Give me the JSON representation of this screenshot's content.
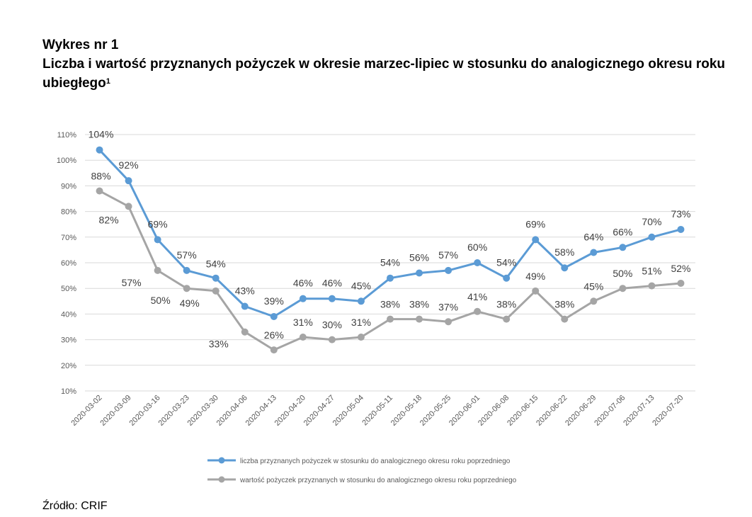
{
  "header": {
    "chart_number": "Wykres nr 1",
    "title": "Liczba i wartość przyznanych pożyczek w okresie marzec-lipiec w stosunku do analogicznego okresu roku ubiegłego",
    "footnote_mark": "1"
  },
  "source": "Źródło: CRIF",
  "chart_data": {
    "type": "line",
    "ylim": [
      0.1,
      1.1
    ],
    "y_ticks": [
      0.1,
      0.2,
      0.3,
      0.4,
      0.5,
      0.6,
      0.7,
      0.8,
      0.9,
      1.0,
      1.1
    ],
    "y_tick_labels": [
      "10%",
      "20%",
      "30%",
      "40%",
      "50%",
      "60%",
      "70%",
      "80%",
      "90%",
      "100%",
      "110%"
    ],
    "grid": true,
    "legend_position": "bottom",
    "categories": [
      "2020-03-02",
      "2020-03-09",
      "2020-03-16",
      "2020-03-23",
      "2020-03-30",
      "2020-04-06",
      "2020-04-13",
      "2020-04-20",
      "2020-04-27",
      "2020-05-04",
      "2020-05-11",
      "2020-05-18",
      "2020-05-25",
      "2020-06-01",
      "2020-06-08",
      "2020-06-15",
      "2020-06-22",
      "2020-06-29",
      "2020-07-06",
      "2020-07-13",
      "2020-07-20"
    ],
    "series": [
      {
        "name": "liczba przyznanych pożyczek w stosunku do analogicznego okresu roku poprzedniego",
        "color": "#5B9BD5",
        "values": [
          1.04,
          0.92,
          0.69,
          0.57,
          0.54,
          0.43,
          0.39,
          0.46,
          0.46,
          0.45,
          0.54,
          0.56,
          0.57,
          0.6,
          0.54,
          0.69,
          0.58,
          0.64,
          0.66,
          0.7,
          0.73
        ],
        "labels": [
          "104%",
          "92%",
          "69%",
          "57%",
          "54%",
          "43%",
          "39%",
          "46%",
          "46%",
          "45%",
          "54%",
          "56%",
          "57%",
          "60%",
          "54%",
          "69%",
          "58%",
          "64%",
          "66%",
          "70%",
          "73%"
        ]
      },
      {
        "name": "wartość pożyczek przyznanych w stosunku do analogicznego okresu roku poprzedniego",
        "color": "#A5A5A5",
        "values": [
          0.88,
          0.82,
          0.57,
          0.5,
          0.49,
          0.33,
          0.26,
          0.31,
          0.3,
          0.31,
          0.38,
          0.38,
          0.37,
          0.41,
          0.38,
          0.49,
          0.38,
          0.45,
          0.5,
          0.51,
          0.52
        ],
        "labels": [
          "88%",
          "82%",
          "57%",
          "50%",
          "49%",
          "33%",
          "26%",
          "31%",
          "30%",
          "31%",
          "38%",
          "38%",
          "37%",
          "41%",
          "38%",
          "49%",
          "38%",
          "45%",
          "50%",
          "51%",
          "52%"
        ]
      }
    ]
  }
}
